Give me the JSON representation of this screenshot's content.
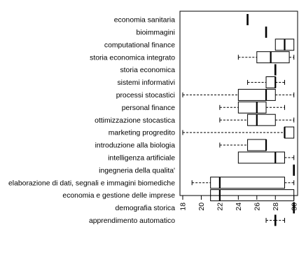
{
  "chart_data": {
    "type": "boxplot",
    "orientation": "horizontal",
    "title": "",
    "xlabel": "",
    "ylabel": "",
    "xlim": [
      17.7,
      30.4
    ],
    "x_ticks": [
      18,
      20,
      22,
      24,
      26,
      28,
      30
    ],
    "grid": false,
    "legend": "none",
    "categories": [
      "economia sanitaria",
      "bioimmagini",
      "computational finance",
      "storia economica integrato",
      "storia economica",
      "sistemi informativi",
      "processi stocastici",
      "personal finance",
      "ottimizzazione stocastica",
      "marketing progredito",
      "introduzione alla biologia",
      "intelligenza artificiale",
      "ingegneria della qualita'",
      "elaborazione di dati, segnali e immagini biomediche",
      "economia e gestione delle imprese",
      "demografia storica",
      "apprendimento automatico"
    ],
    "boxes": [
      {
        "min": 25,
        "q1": 25,
        "median": 25,
        "q3": 25,
        "max": 25
      },
      {
        "min": 27,
        "q1": 27,
        "median": 27,
        "q3": 27,
        "max": 27
      },
      {
        "min": 28,
        "q1": 28,
        "median": 29,
        "q3": 30,
        "max": 30
      },
      {
        "min": 24,
        "q1": 26,
        "median": 27.5,
        "q3": 29.5,
        "max": 30
      },
      {
        "min": 28,
        "q1": 28,
        "median": 28,
        "q3": 28,
        "max": 28
      },
      {
        "min": 25,
        "q1": 27,
        "median": 28,
        "q3": 28,
        "max": 29
      },
      {
        "min": 18,
        "q1": 24,
        "median": 27,
        "q3": 28,
        "max": 30
      },
      {
        "min": 22,
        "q1": 24,
        "median": 26,
        "q3": 27,
        "max": 29
      },
      {
        "min": 22,
        "q1": 25,
        "median": 26,
        "q3": 28,
        "max": 30
      },
      {
        "min": 18,
        "q1": 29,
        "median": 29,
        "q3": 30,
        "max": 30
      },
      {
        "min": 22,
        "q1": 25,
        "median": 27,
        "q3": 27,
        "max": 27
      },
      {
        "min": 24,
        "q1": 24,
        "median": 28,
        "q3": 29,
        "max": 30
      },
      {
        "min": 30,
        "q1": 30,
        "median": 30,
        "q3": 30,
        "max": 30
      },
      {
        "min": 19,
        "q1": 21,
        "median": 22,
        "q3": 29,
        "max": 30
      },
      {
        "min": 21,
        "q1": 21,
        "median": 22,
        "q3": 30,
        "max": 30
      },
      {
        "min": 30,
        "q1": 30,
        "median": 30,
        "q3": 30,
        "max": 30
      },
      {
        "min": 27,
        "q1": 28,
        "median": 28,
        "q3": 28,
        "max": 29
      }
    ]
  }
}
